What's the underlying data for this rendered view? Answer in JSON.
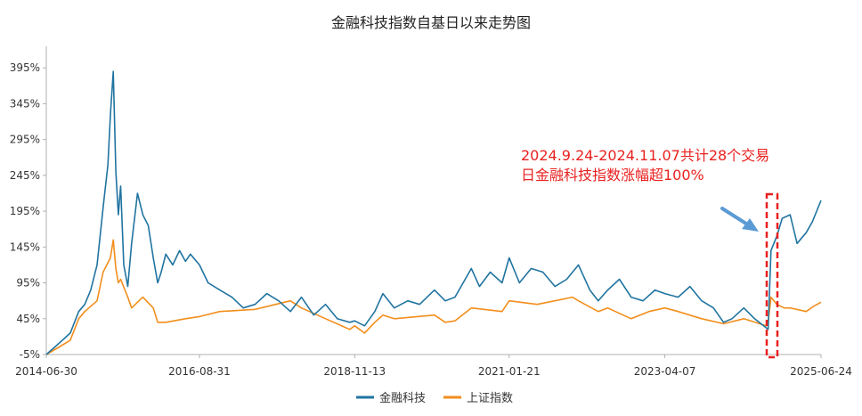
{
  "chart_data": {
    "type": "line",
    "title": "金融科技指数自基日以来走势图",
    "xlabel": "",
    "ylabel": "",
    "x_tick_labels": [
      "2014-06-30",
      "2016-08-31",
      "2018-11-13",
      "2021-01-21",
      "2023-04-07",
      "2025-06-24"
    ],
    "x_range": [
      "2014-06-30",
      "2025-06-24"
    ],
    "y_tick_labels": [
      "-5%",
      "45%",
      "95%",
      "145%",
      "195%",
      "245%",
      "295%",
      "345%",
      "395%"
    ],
    "ylim": [
      -5,
      425
    ],
    "grid": false,
    "legend_position": "bottom",
    "series": [
      {
        "name": "金融科技",
        "color": "#2074a0",
        "x": [
          "2014-06-30",
          "2014-09-01",
          "2014-11-01",
          "2014-12-15",
          "2015-01-15",
          "2015-02-15",
          "2015-03-20",
          "2015-04-20",
          "2015-05-15",
          "2015-05-28",
          "2015-06-12",
          "2015-06-25",
          "2015-07-08",
          "2015-07-20",
          "2015-08-05",
          "2015-08-26",
          "2015-09-15",
          "2015-10-15",
          "2015-11-12",
          "2015-12-10",
          "2016-01-05",
          "2016-01-28",
          "2016-02-15",
          "2016-03-10",
          "2016-04-15",
          "2016-05-20",
          "2016-06-20",
          "2016-07-15",
          "2016-08-31",
          "2016-10-15",
          "2016-12-15",
          "2017-02-15",
          "2017-04-15",
          "2017-06-15",
          "2017-08-15",
          "2017-10-15",
          "2017-12-15",
          "2018-02-10",
          "2018-04-15",
          "2018-06-15",
          "2018-08-15",
          "2018-10-18",
          "2018-11-13",
          "2019-01-03",
          "2019-02-25",
          "2019-04-08",
          "2019-06-06",
          "2019-08-15",
          "2019-10-15",
          "2019-12-31",
          "2020-02-25",
          "2020-04-15",
          "2020-07-09",
          "2020-08-20",
          "2020-10-15",
          "2020-12-15",
          "2021-01-21",
          "2021-03-15",
          "2021-05-15",
          "2021-07-15",
          "2021-09-15",
          "2021-11-15",
          "2022-01-15",
          "2022-03-15",
          "2022-04-27",
          "2022-06-15",
          "2022-08-15",
          "2022-10-15",
          "2022-12-15",
          "2023-02-15",
          "2023-04-07",
          "2023-06-15",
          "2023-08-15",
          "2023-10-15",
          "2023-12-15",
          "2024-02-05",
          "2024-03-20",
          "2024-05-20",
          "2024-07-15",
          "2024-09-23",
          "2024-10-08",
          "2024-11-07",
          "2024-12-05",
          "2025-01-15",
          "2025-02-20",
          "2025-04-08",
          "2025-05-10",
          "2025-06-24"
        ],
        "values": [
          -5,
          10,
          25,
          55,
          65,
          85,
          120,
          200,
          260,
          330,
          390,
          250,
          190,
          230,
          120,
          90,
          150,
          220,
          190,
          175,
          130,
          95,
          110,
          135,
          120,
          140,
          125,
          135,
          120,
          95,
          85,
          75,
          60,
          65,
          80,
          70,
          55,
          75,
          50,
          65,
          45,
          40,
          42,
          35,
          55,
          80,
          60,
          70,
          65,
          85,
          70,
          75,
          115,
          90,
          110,
          95,
          130,
          95,
          115,
          110,
          90,
          100,
          120,
          85,
          70,
          85,
          100,
          75,
          70,
          85,
          80,
          75,
          90,
          70,
          60,
          40,
          45,
          60,
          45,
          30,
          140,
          160,
          185,
          190,
          150,
          165,
          180,
          210
        ]
      },
      {
        "name": "上证指数",
        "color": "#f28e1c",
        "x": [
          "2014-06-30",
          "2014-09-01",
          "2014-11-01",
          "2014-12-15",
          "2015-01-15",
          "2015-03-20",
          "2015-04-20",
          "2015-05-28",
          "2015-06-12",
          "2015-06-25",
          "2015-07-08",
          "2015-07-20",
          "2015-08-26",
          "2015-09-15",
          "2015-11-12",
          "2016-01-05",
          "2016-01-28",
          "2016-03-10",
          "2016-06-20",
          "2016-08-31",
          "2016-12-15",
          "2017-06-15",
          "2017-12-15",
          "2018-02-10",
          "2018-06-15",
          "2018-10-18",
          "2018-11-13",
          "2019-01-03",
          "2019-02-25",
          "2019-04-08",
          "2019-06-06",
          "2019-12-31",
          "2020-02-25",
          "2020-04-15",
          "2020-07-09",
          "2020-12-15",
          "2021-01-21",
          "2021-06-15",
          "2021-12-15",
          "2022-01-15",
          "2022-04-27",
          "2022-06-15",
          "2022-10-15",
          "2023-01-15",
          "2023-04-07",
          "2023-06-15",
          "2023-10-15",
          "2024-02-05",
          "2024-05-20",
          "2024-09-13",
          "2024-09-23",
          "2024-10-08",
          "2024-11-07",
          "2024-12-15",
          "2025-01-15",
          "2025-04-08",
          "2025-05-15",
          "2025-06-24"
        ],
        "values": [
          -5,
          5,
          15,
          45,
          55,
          70,
          110,
          130,
          155,
          115,
          95,
          100,
          75,
          60,
          75,
          60,
          40,
          40,
          45,
          48,
          55,
          58,
          70,
          60,
          45,
          30,
          35,
          25,
          40,
          50,
          45,
          50,
          40,
          42,
          60,
          55,
          70,
          65,
          75,
          70,
          55,
          60,
          45,
          55,
          60,
          55,
          45,
          38,
          45,
          35,
          40,
          75,
          65,
          60,
          60,
          55,
          62,
          68
        ]
      }
    ],
    "annotation": {
      "text_lines": [
        "2024.9.24-2024.11.07共计28个交易",
        "日金融科技指数涨幅超100%"
      ],
      "color": "#e8211f",
      "highlight_range": [
        "2024-09-24",
        "2024-11-07"
      ]
    }
  }
}
